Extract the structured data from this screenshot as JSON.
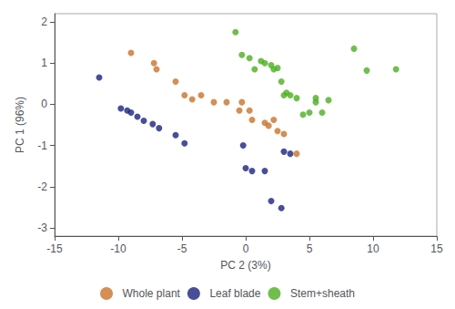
{
  "chart_data": {
    "type": "scatter",
    "xlabel": "PC 2 (3%)",
    "ylabel": "PC 1 (96%)",
    "xlim": [
      -15,
      15
    ],
    "ylim": [
      -3.2,
      2.2
    ],
    "xticks": [
      -15,
      -10,
      -5,
      0,
      5,
      10,
      15
    ],
    "yticks": [
      -3,
      -2,
      -1,
      0,
      1,
      2
    ],
    "grid": false,
    "legend": "bottom",
    "series": [
      {
        "name": "Whole plant",
        "color": "#c8732a",
        "x": [
          -9.0,
          -7.2,
          -7.0,
          -5.5,
          -4.8,
          -4.2,
          -3.5,
          -2.5,
          -1.5,
          -0.5,
          -0.3,
          0.3,
          0.5,
          1.5,
          1.8,
          2.2,
          2.5,
          3.0,
          4.0
        ],
        "values": [
          1.25,
          1.0,
          0.85,
          0.55,
          0.22,
          0.12,
          0.22,
          0.05,
          0.05,
          -0.15,
          0.05,
          -0.15,
          -0.38,
          -0.45,
          -0.52,
          -0.38,
          -0.65,
          -0.72,
          -1.2
        ]
      },
      {
        "name": "Leaf blade",
        "color": "#1a237e",
        "x": [
          -11.5,
          -9.8,
          -9.3,
          -9.0,
          -8.5,
          -8.0,
          -7.3,
          -6.8,
          -5.5,
          -4.8,
          -0.2,
          0.0,
          0.5,
          1.5,
          2.0,
          2.8,
          3.0,
          3.5
        ],
        "values": [
          0.65,
          -0.1,
          -0.15,
          -0.2,
          -0.3,
          -0.4,
          -0.48,
          -0.58,
          -0.75,
          -0.95,
          -1.0,
          -1.55,
          -1.62,
          -1.62,
          -2.35,
          -2.52,
          -1.15,
          -1.2
        ]
      },
      {
        "name": "Stem+sheath",
        "color": "#4caf20",
        "x": [
          -0.8,
          -0.3,
          0.3,
          0.7,
          1.2,
          1.5,
          2.0,
          2.2,
          2.5,
          2.8,
          3.0,
          3.2,
          3.5,
          4.0,
          4.5,
          5.0,
          5.5,
          6.0,
          6.5,
          8.5,
          9.5,
          11.8,
          5.5
        ],
        "values": [
          1.75,
          1.2,
          1.12,
          0.85,
          1.05,
          1.0,
          0.95,
          0.85,
          0.88,
          0.55,
          0.22,
          0.28,
          0.22,
          0.15,
          -0.25,
          -0.2,
          0.05,
          -0.2,
          0.1,
          1.35,
          0.82,
          0.85,
          0.15
        ]
      }
    ]
  }
}
